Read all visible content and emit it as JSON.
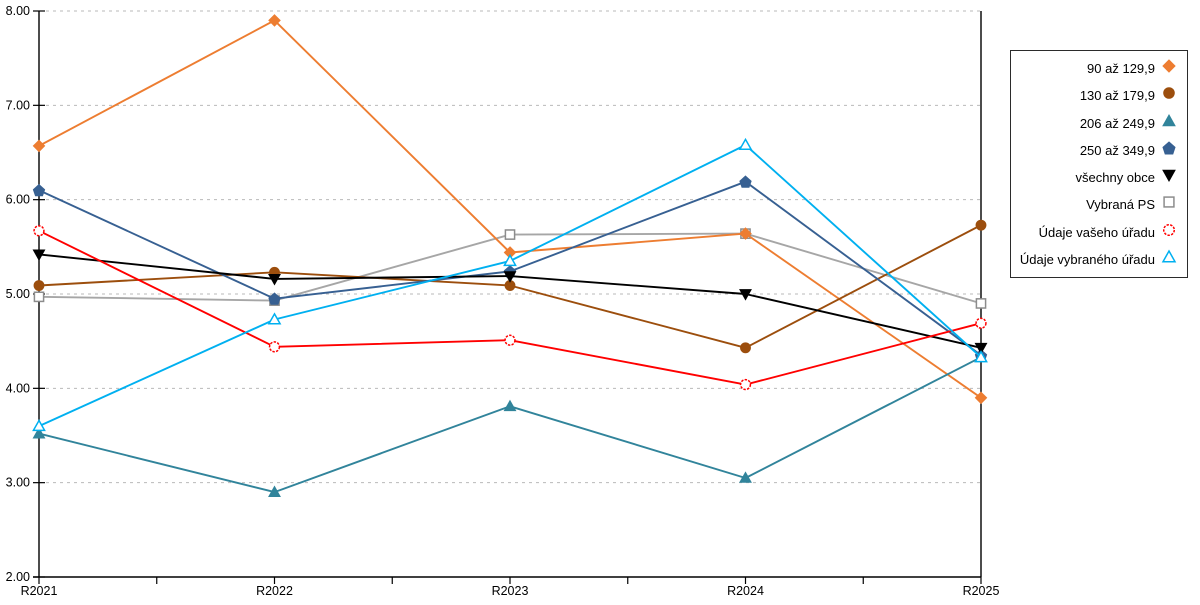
{
  "chart_data": {
    "type": "line",
    "title": "",
    "xlabel": "",
    "ylabel": "",
    "categories": [
      "R2021",
      "R2022",
      "R2023",
      "R2024",
      "R2025"
    ],
    "series": [
      {
        "name": "90 až 129,9",
        "color": "#ED7D31",
        "marker": "diamond",
        "filled": true,
        "values": [
          6.57,
          7.9,
          5.44,
          5.64,
          3.9
        ]
      },
      {
        "name": "130 až 179,9",
        "color": "#9C4E0D",
        "marker": "circle",
        "filled": true,
        "values": [
          5.09,
          5.23,
          5.09,
          4.43,
          5.73
        ]
      },
      {
        "name": "206 až 249,9",
        "color": "#31849B",
        "marker": "triangle-up",
        "filled": true,
        "values": [
          3.52,
          2.9,
          3.81,
          3.05,
          4.33
        ]
      },
      {
        "name": "250 až 349,9",
        "color": "#376092",
        "marker": "pentagon",
        "filled": true,
        "values": [
          6.1,
          4.95,
          5.24,
          6.19,
          4.35
        ]
      },
      {
        "name": "všechny obce",
        "color": "#000000",
        "marker": "triangle-down",
        "filled": true,
        "values": [
          5.42,
          5.16,
          5.19,
          5.0,
          4.43
        ]
      },
      {
        "name": "Vybraná PS",
        "color": "#8C8C8C",
        "marker": "square",
        "filled": false,
        "values": [
          4.97,
          4.93,
          5.63,
          5.64,
          4.9
        ]
      },
      {
        "name": "Údaje vašeho úřadu",
        "color": "#FF0000",
        "marker": "circle",
        "filled": false,
        "values": [
          5.67,
          4.44,
          4.51,
          4.04,
          4.69
        ]
      },
      {
        "name": "Údaje vybraného úřadu",
        "color": "#00B0F0",
        "marker": "triangle-up",
        "filled": false,
        "values": [
          3.6,
          4.73,
          5.35,
          6.58,
          4.33
        ]
      }
    ],
    "ylim": [
      2,
      8
    ],
    "ytick_labels": [
      "8.00",
      "7.00",
      "6.00",
      "5.00",
      "4.00",
      "3.00",
      "2.00"
    ],
    "grid": "horizontal-dashed",
    "legend_position": "right",
    "line_color_gray_line": "#A6A6A6"
  }
}
